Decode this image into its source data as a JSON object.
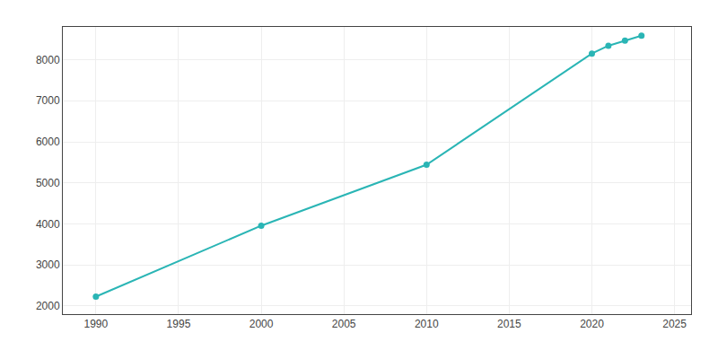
{
  "chart_data": {
    "type": "line",
    "x": [
      1990,
      2000,
      2010,
      2020,
      2021,
      2022,
      2023
    ],
    "values": [
      2226,
      3956,
      5441,
      8150,
      8342,
      8468,
      8587
    ],
    "color": "#2ab5b5",
    "marker": "circle",
    "xlim": [
      1988,
      2026
    ],
    "ylim": [
      1800,
      8800
    ],
    "xticks": [
      1990,
      1995,
      2000,
      2005,
      2010,
      2015,
      2020,
      2025
    ],
    "yticks": [
      2000,
      3000,
      4000,
      5000,
      6000,
      7000,
      8000
    ],
    "grid": true
  }
}
